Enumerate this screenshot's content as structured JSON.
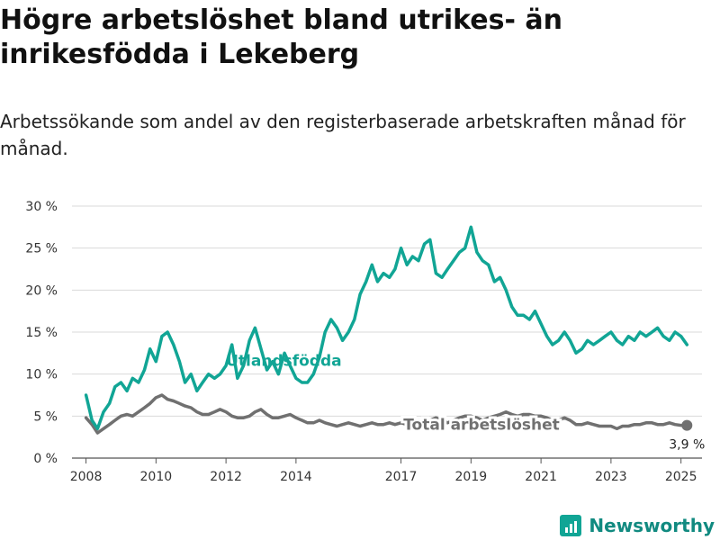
{
  "header": {
    "title": "Högre arbetslöshet bland utrikes- än inrikesfödda i Lekeberg",
    "subtitle": "Arbetssökande som andel av den registerbaserade arbetskraften månad för månad."
  },
  "brand": {
    "name": "Newsworthy",
    "icon": "bar-chart-icon",
    "color": "#11a595"
  },
  "chart_data": {
    "type": "line",
    "y_ticks": [
      "0 %",
      "5 %",
      "10 %",
      "15 %",
      "20 %",
      "25 %",
      "30 %"
    ],
    "ylim": [
      0,
      30
    ],
    "x_ticks": [
      "2008",
      "2010",
      "2012",
      "2014",
      "2017",
      "2019",
      "2021",
      "2023",
      "2025"
    ],
    "x_tick_values": [
      2008.0,
      2010.0,
      2012.0,
      2014.0,
      2017.0,
      2019.0,
      2021.0,
      2023.0,
      2025.0
    ],
    "xlim": [
      2007.6,
      2025.6
    ],
    "grid": true,
    "end_label": "3,9 %",
    "series": [
      {
        "name": "Utlandsfödda",
        "color": "#11a595",
        "x": [
          2008.0,
          2008.17,
          2008.33,
          2008.5,
          2008.67,
          2008.83,
          2009.0,
          2009.17,
          2009.33,
          2009.5,
          2009.67,
          2009.83,
          2010.0,
          2010.17,
          2010.33,
          2010.5,
          2010.67,
          2010.83,
          2011.0,
          2011.17,
          2011.33,
          2011.5,
          2011.67,
          2011.83,
          2012.0,
          2012.17,
          2012.33,
          2012.5,
          2012.67,
          2012.83,
          2013.0,
          2013.17,
          2013.33,
          2013.5,
          2013.67,
          2013.83,
          2014.0,
          2014.17,
          2014.33,
          2014.5,
          2014.67,
          2014.83,
          2015.0,
          2015.17,
          2015.33,
          2015.5,
          2015.67,
          2015.83,
          2016.0,
          2016.17,
          2016.33,
          2016.5,
          2016.67,
          2016.83,
          2017.0,
          2017.17,
          2017.33,
          2017.5,
          2017.67,
          2017.83,
          2018.0,
          2018.17,
          2018.33,
          2018.5,
          2018.67,
          2018.83,
          2019.0,
          2019.17,
          2019.33,
          2019.5,
          2019.67,
          2019.83,
          2020.0,
          2020.17,
          2020.33,
          2020.5,
          2020.67,
          2020.83,
          2021.0,
          2021.17,
          2021.33,
          2021.5,
          2021.67,
          2021.83,
          2022.0,
          2022.17,
          2022.33,
          2022.5,
          2022.67,
          2022.83,
          2023.0,
          2023.17,
          2023.33,
          2023.5,
          2023.67,
          2023.83,
          2024.0,
          2024.17,
          2024.33,
          2024.5,
          2024.67,
          2024.83,
          2025.0,
          2025.17
        ],
        "values": [
          7.5,
          4.5,
          3.5,
          5.5,
          6.5,
          8.5,
          9.0,
          8.0,
          9.5,
          9.0,
          10.5,
          13.0,
          11.5,
          14.5,
          15.0,
          13.5,
          11.5,
          9.0,
          10.0,
          8.0,
          9.0,
          10.0,
          9.5,
          10.0,
          11.0,
          13.5,
          9.5,
          11.0,
          14.0,
          15.5,
          13.0,
          10.5,
          11.5,
          10.0,
          12.5,
          11.0,
          9.5,
          9.0,
          9.0,
          10.0,
          12.0,
          15.0,
          16.5,
          15.5,
          14.0,
          15.0,
          16.5,
          19.5,
          21.0,
          23.0,
          21.0,
          22.0,
          21.5,
          22.5,
          25.0,
          23.0,
          24.0,
          23.5,
          25.5,
          26.0,
          22.0,
          21.5,
          22.5,
          23.5,
          24.5,
          25.0,
          27.5,
          24.5,
          23.5,
          23.0,
          21.0,
          21.5,
          20.0,
          18.0,
          17.0,
          17.0,
          16.5,
          17.5,
          16.0,
          14.5,
          13.5,
          14.0,
          15.0,
          14.0,
          12.5,
          13.0,
          14.0,
          13.5,
          14.0,
          14.5,
          15.0,
          14.0,
          13.5,
          14.5,
          14.0,
          15.0,
          14.5,
          15.0,
          15.5,
          14.5,
          14.0,
          15.0,
          14.5,
          13.5
        ]
      },
      {
        "name": "Total arbetslöshet",
        "color": "#707070",
        "x": [
          2008.0,
          2008.17,
          2008.33,
          2008.5,
          2008.67,
          2008.83,
          2009.0,
          2009.17,
          2009.33,
          2009.5,
          2009.67,
          2009.83,
          2010.0,
          2010.17,
          2010.33,
          2010.5,
          2010.67,
          2010.83,
          2011.0,
          2011.17,
          2011.33,
          2011.5,
          2011.67,
          2011.83,
          2012.0,
          2012.17,
          2012.33,
          2012.5,
          2012.67,
          2012.83,
          2013.0,
          2013.17,
          2013.33,
          2013.5,
          2013.67,
          2013.83,
          2014.0,
          2014.17,
          2014.33,
          2014.5,
          2014.67,
          2014.83,
          2015.0,
          2015.17,
          2015.33,
          2015.5,
          2015.67,
          2015.83,
          2016.0,
          2016.17,
          2016.33,
          2016.5,
          2016.67,
          2016.83,
          2017.0,
          2017.17,
          2017.33,
          2017.5,
          2017.67,
          2017.83,
          2018.0,
          2018.17,
          2018.33,
          2018.5,
          2018.67,
          2018.83,
          2019.0,
          2019.17,
          2019.33,
          2019.5,
          2019.67,
          2019.83,
          2020.0,
          2020.17,
          2020.33,
          2020.5,
          2020.67,
          2020.83,
          2021.0,
          2021.17,
          2021.33,
          2021.5,
          2021.67,
          2021.83,
          2022.0,
          2022.17,
          2022.33,
          2022.5,
          2022.67,
          2022.83,
          2023.0,
          2023.17,
          2023.33,
          2023.5,
          2023.67,
          2023.83,
          2024.0,
          2024.17,
          2024.33,
          2024.5,
          2024.67,
          2024.83,
          2025.0,
          2025.17
        ],
        "values": [
          4.8,
          4.0,
          3.0,
          3.5,
          4.0,
          4.5,
          5.0,
          5.2,
          5.0,
          5.5,
          6.0,
          6.5,
          7.2,
          7.5,
          7.0,
          6.8,
          6.5,
          6.2,
          6.0,
          5.5,
          5.2,
          5.2,
          5.5,
          5.8,
          5.5,
          5.0,
          4.8,
          4.8,
          5.0,
          5.5,
          5.8,
          5.2,
          4.8,
          4.8,
          5.0,
          5.2,
          4.8,
          4.5,
          4.2,
          4.2,
          4.5,
          4.2,
          4.0,
          3.8,
          4.0,
          4.2,
          4.0,
          3.8,
          4.0,
          4.2,
          4.0,
          4.0,
          4.2,
          4.0,
          4.2,
          4.0,
          4.2,
          4.5,
          4.2,
          4.5,
          4.8,
          4.5,
          4.2,
          4.5,
          4.8,
          5.0,
          5.0,
          4.8,
          4.5,
          4.8,
          5.0,
          5.2,
          5.5,
          5.2,
          5.0,
          5.2,
          5.2,
          5.0,
          5.0,
          4.8,
          4.5,
          4.5,
          4.8,
          4.5,
          4.0,
          4.0,
          4.2,
          4.0,
          3.8,
          3.8,
          3.8,
          3.5,
          3.8,
          3.8,
          4.0,
          4.0,
          4.2,
          4.2,
          4.0,
          4.0,
          4.2,
          4.0,
          3.9,
          3.9
        ]
      }
    ]
  }
}
